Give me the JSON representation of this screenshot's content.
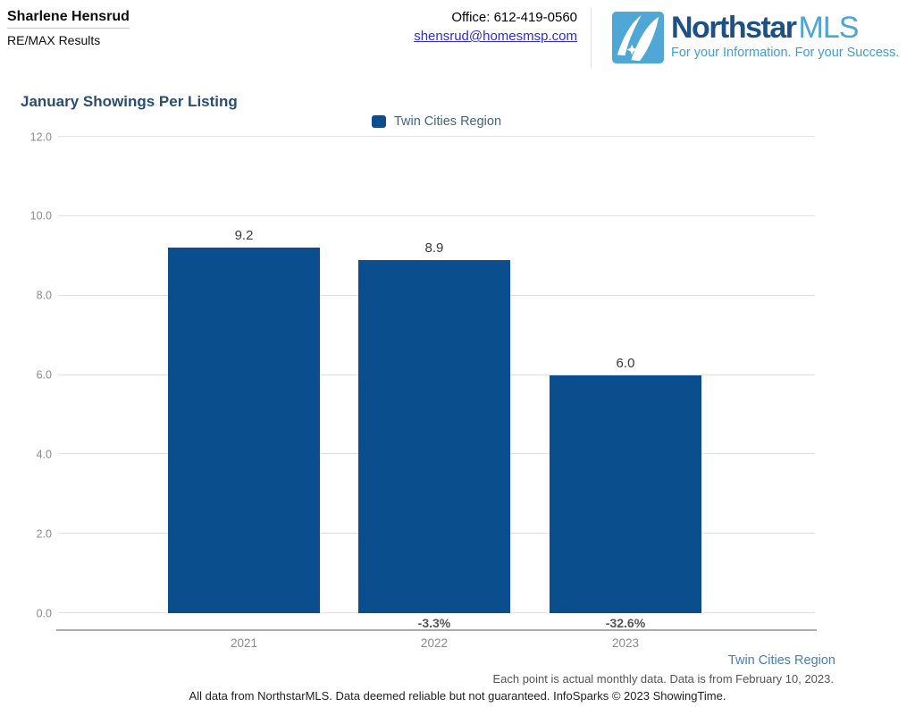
{
  "header": {
    "agent_name": "Sharlene Hensrud",
    "brokerage": "RE/MAX Results",
    "office_phone": "Office: 612-419-0560",
    "email": "shensrud@homesmsp.com",
    "logo": {
      "brand_primary": "Northstar",
      "brand_secondary": "MLS",
      "tagline": "For your Information. For your Success.",
      "brand_primary_color": "#1d5183",
      "brand_secondary_color": "#4ca5d4",
      "icon_color": "#4ea7d4"
    }
  },
  "chart": {
    "title": "January Showings Per Listing"
  },
  "chart_data": {
    "type": "bar",
    "title": "January Showings Per Listing",
    "series_name": "Twin Cities Region",
    "categories": [
      "2021",
      "2022",
      "2023"
    ],
    "values": [
      9.2,
      8.9,
      6.0
    ],
    "value_labels": [
      "9.2",
      "8.9",
      "6.0"
    ],
    "pct_change_labels": [
      "",
      "-3.3%",
      "-32.6%"
    ],
    "ylim": [
      0,
      12
    ],
    "yticks": [
      0,
      2,
      4,
      6,
      8,
      10,
      12
    ],
    "ytick_labels": [
      "0.0",
      "2.0",
      "4.0",
      "6.0",
      "8.0",
      "10.0",
      "12.0"
    ],
    "bar_color": "#0a4e8d",
    "grid": true,
    "legend_position": "top-center"
  },
  "footer": {
    "region_label": "Twin Cities Region",
    "data_note": "Each point is actual monthly data. Data is from February 10, 2023.",
    "attribution": "All data from NorthstarMLS. Data deemed reliable but not guaranteed. InfoSparks © 2023 ShowingTime."
  }
}
